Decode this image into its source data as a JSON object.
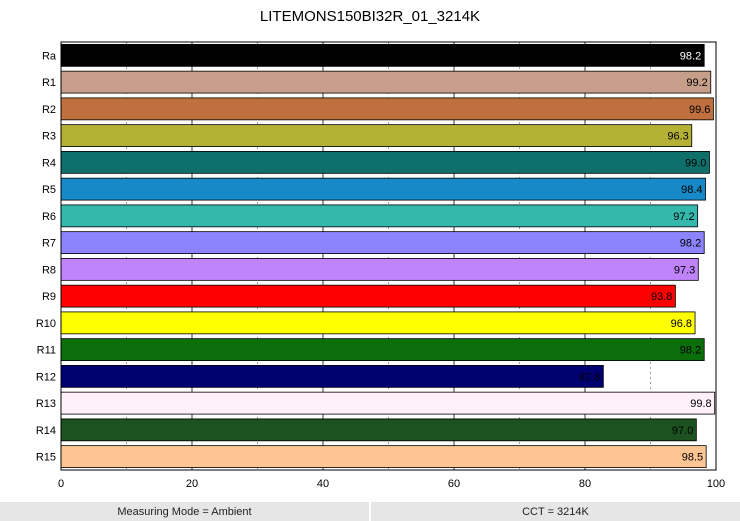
{
  "chart_data": {
    "type": "bar",
    "orientation": "horizontal",
    "title": "LITEMONS150BI32R_01_3214K",
    "xlabel": "",
    "ylabel": "",
    "xlim": [
      0,
      100
    ],
    "x_ticks": [
      0,
      20,
      40,
      60,
      80,
      100
    ],
    "grid": "vertical, solid at major ticks, dotted at midpoints",
    "legend": "none",
    "categories": [
      "Ra",
      "R1",
      "R2",
      "R3",
      "R4",
      "R5",
      "R6",
      "R7",
      "R8",
      "R9",
      "R10",
      "R11",
      "R12",
      "R13",
      "R14",
      "R15"
    ],
    "values": [
      98.2,
      99.2,
      99.6,
      96.3,
      99.0,
      98.4,
      97.2,
      98.2,
      97.3,
      93.8,
      96.8,
      98.2,
      82.8,
      99.8,
      97.0,
      98.5
    ],
    "value_labels": [
      "98.2",
      "99.2",
      "99.6",
      "96.3",
      "99.0",
      "98.4",
      "97.2",
      "98.2",
      "97.3",
      "93.8",
      "96.8",
      "98.2",
      "82.8",
      "99.8",
      "97.0",
      "98.5"
    ],
    "colors": [
      "#000000",
      "#c69e8a",
      "#c0703f",
      "#b5b135",
      "#0f706b",
      "#1689c6",
      "#35b8ac",
      "#8b84fd",
      "#bf84fb",
      "#ff0000",
      "#ffff00",
      "#0b6e0b",
      "#010272",
      "#fff0fa",
      "#1c5220",
      "#fec594"
    ],
    "label_colors": [
      "#ffffff",
      "#000000",
      "#000000",
      "#000000",
      "#000000",
      "#000000",
      "#000000",
      "#000000",
      "#000000",
      "#000000",
      "#000000",
      "#000000",
      "#000000",
      "#000000",
      "#000000",
      "#000000"
    ]
  },
  "footer": {
    "left": "Measuring Mode = Ambient",
    "right": "CCT = 3214K"
  }
}
